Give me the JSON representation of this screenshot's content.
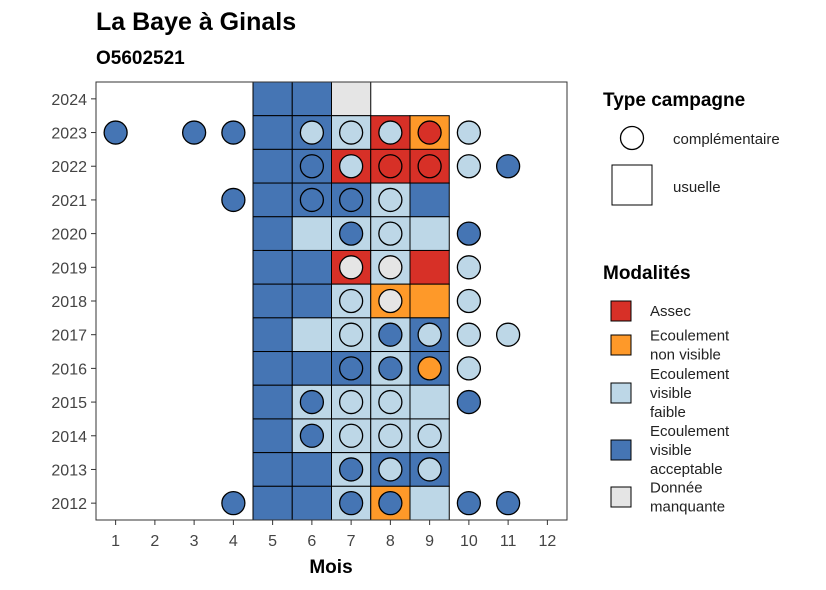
{
  "chart_data": {
    "type": "heatmap",
    "title": "La Baye à Ginals",
    "subtitle": "O5602521",
    "xlabel": "Mois",
    "ylabel": "",
    "x_ticks": [
      "1",
      "2",
      "3",
      "4",
      "5",
      "6",
      "7",
      "8",
      "9",
      "10",
      "11",
      "12"
    ],
    "y_ticks": [
      "2012",
      "2013",
      "2014",
      "2015",
      "2016",
      "2017",
      "2018",
      "2019",
      "2020",
      "2021",
      "2022",
      "2023",
      "2024"
    ],
    "xlim": [
      0.5,
      12.5
    ],
    "ylim": [
      2011.5,
      2024.5
    ],
    "grid": false,
    "legend_position": "right",
    "colors": {
      "Assec": "#d73027",
      "Ecoulement non visible": "#fe9929",
      "Ecoulement visible faible": "#bdd7e7",
      "Ecoulement visible acceptable": "#4575b4",
      "Donnée manquante": "#e5e5e5"
    },
    "legend_campagne": {
      "title": "Type campagne",
      "items": [
        {
          "shape": "circle",
          "label": "complémentaire"
        },
        {
          "shape": "square",
          "label": "usuelle"
        }
      ]
    },
    "legend_modalites": {
      "title": "Modalités",
      "items": [
        {
          "key": "Assec",
          "lines": [
            "Assec"
          ]
        },
        {
          "key": "Ecoulement non visible",
          "lines": [
            "Ecoulement",
            "non visible"
          ]
        },
        {
          "key": "Ecoulement visible faible",
          "lines": [
            "Ecoulement",
            "visible",
            "faible"
          ]
        },
        {
          "key": "Ecoulement visible acceptable",
          "lines": [
            "Ecoulement",
            "visible",
            "acceptable"
          ]
        },
        {
          "key": "Donnée manquante",
          "lines": [
            "Donnée",
            "manquante"
          ]
        }
      ]
    },
    "usuelle": [
      {
        "year": 2024,
        "month": 5,
        "value": "Ecoulement visible acceptable"
      },
      {
        "year": 2024,
        "month": 6,
        "value": "Ecoulement visible acceptable"
      },
      {
        "year": 2024,
        "month": 7,
        "value": "Donnée manquante"
      },
      {
        "year": 2023,
        "month": 5,
        "value": "Ecoulement visible acceptable"
      },
      {
        "year": 2023,
        "month": 6,
        "value": "Ecoulement visible acceptable"
      },
      {
        "year": 2023,
        "month": 7,
        "value": "Ecoulement visible faible"
      },
      {
        "year": 2023,
        "month": 8,
        "value": "Assec"
      },
      {
        "year": 2023,
        "month": 9,
        "value": "Ecoulement non visible"
      },
      {
        "year": 2022,
        "month": 5,
        "value": "Ecoulement visible acceptable"
      },
      {
        "year": 2022,
        "month": 6,
        "value": "Ecoulement visible acceptable"
      },
      {
        "year": 2022,
        "month": 7,
        "value": "Assec"
      },
      {
        "year": 2022,
        "month": 8,
        "value": "Assec"
      },
      {
        "year": 2022,
        "month": 9,
        "value": "Assec"
      },
      {
        "year": 2021,
        "month": 5,
        "value": "Ecoulement visible acceptable"
      },
      {
        "year": 2021,
        "month": 6,
        "value": "Ecoulement visible acceptable"
      },
      {
        "year": 2021,
        "month": 7,
        "value": "Ecoulement visible acceptable"
      },
      {
        "year": 2021,
        "month": 8,
        "value": "Ecoulement visible faible"
      },
      {
        "year": 2021,
        "month": 9,
        "value": "Ecoulement visible acceptable"
      },
      {
        "year": 2020,
        "month": 5,
        "value": "Ecoulement visible acceptable"
      },
      {
        "year": 2020,
        "month": 6,
        "value": "Ecoulement visible faible"
      },
      {
        "year": 2020,
        "month": 7,
        "value": "Ecoulement visible faible"
      },
      {
        "year": 2020,
        "month": 8,
        "value": "Ecoulement visible faible"
      },
      {
        "year": 2020,
        "month": 9,
        "value": "Ecoulement visible faible"
      },
      {
        "year": 2019,
        "month": 5,
        "value": "Ecoulement visible acceptable"
      },
      {
        "year": 2019,
        "month": 6,
        "value": "Ecoulement visible acceptable"
      },
      {
        "year": 2019,
        "month": 7,
        "value": "Assec"
      },
      {
        "year": 2019,
        "month": 8,
        "value": "Ecoulement visible faible"
      },
      {
        "year": 2019,
        "month": 9,
        "value": "Assec"
      },
      {
        "year": 2018,
        "month": 5,
        "value": "Ecoulement visible acceptable"
      },
      {
        "year": 2018,
        "month": 6,
        "value": "Ecoulement visible acceptable"
      },
      {
        "year": 2018,
        "month": 7,
        "value": "Ecoulement visible faible"
      },
      {
        "year": 2018,
        "month": 8,
        "value": "Ecoulement non visible"
      },
      {
        "year": 2018,
        "month": 9,
        "value": "Ecoulement non visible"
      },
      {
        "year": 2017,
        "month": 5,
        "value": "Ecoulement visible acceptable"
      },
      {
        "year": 2017,
        "month": 6,
        "value": "Ecoulement visible faible"
      },
      {
        "year": 2017,
        "month": 7,
        "value": "Ecoulement visible faible"
      },
      {
        "year": 2017,
        "month": 8,
        "value": "Ecoulement visible faible"
      },
      {
        "year": 2017,
        "month": 9,
        "value": "Ecoulement visible acceptable"
      },
      {
        "year": 2016,
        "month": 5,
        "value": "Ecoulement visible acceptable"
      },
      {
        "year": 2016,
        "month": 6,
        "value": "Ecoulement visible acceptable"
      },
      {
        "year": 2016,
        "month": 7,
        "value": "Ecoulement visible acceptable"
      },
      {
        "year": 2016,
        "month": 8,
        "value": "Ecoulement visible faible"
      },
      {
        "year": 2016,
        "month": 9,
        "value": "Ecoulement visible acceptable"
      },
      {
        "year": 2015,
        "month": 5,
        "value": "Ecoulement visible acceptable"
      },
      {
        "year": 2015,
        "month": 6,
        "value": "Ecoulement visible faible"
      },
      {
        "year": 2015,
        "month": 7,
        "value": "Ecoulement visible faible"
      },
      {
        "year": 2015,
        "month": 8,
        "value": "Ecoulement visible faible"
      },
      {
        "year": 2015,
        "month": 9,
        "value": "Ecoulement visible faible"
      },
      {
        "year": 2014,
        "month": 5,
        "value": "Ecoulement visible acceptable"
      },
      {
        "year": 2014,
        "month": 6,
        "value": "Ecoulement visible faible"
      },
      {
        "year": 2014,
        "month": 7,
        "value": "Ecoulement visible faible"
      },
      {
        "year": 2014,
        "month": 8,
        "value": "Ecoulement visible faible"
      },
      {
        "year": 2014,
        "month": 9,
        "value": "Ecoulement visible faible"
      },
      {
        "year": 2013,
        "month": 5,
        "value": "Ecoulement visible acceptable"
      },
      {
        "year": 2013,
        "month": 6,
        "value": "Ecoulement visible acceptable"
      },
      {
        "year": 2013,
        "month": 7,
        "value": "Ecoulement visible faible"
      },
      {
        "year": 2013,
        "month": 8,
        "value": "Ecoulement visible acceptable"
      },
      {
        "year": 2013,
        "month": 9,
        "value": "Ecoulement visible acceptable"
      },
      {
        "year": 2012,
        "month": 5,
        "value": "Ecoulement visible acceptable"
      },
      {
        "year": 2012,
        "month": 6,
        "value": "Ecoulement visible acceptable"
      },
      {
        "year": 2012,
        "month": 7,
        "value": "Ecoulement visible faible"
      },
      {
        "year": 2012,
        "month": 8,
        "value": "Ecoulement non visible"
      },
      {
        "year": 2012,
        "month": 9,
        "value": "Ecoulement visible faible"
      }
    ],
    "complementaire": [
      {
        "year": 2023,
        "month": 1,
        "value": "Ecoulement visible acceptable"
      },
      {
        "year": 2023,
        "month": 3,
        "value": "Ecoulement visible acceptable"
      },
      {
        "year": 2023,
        "month": 4,
        "value": "Ecoulement visible acceptable"
      },
      {
        "year": 2023,
        "month": 6,
        "value": "Ecoulement visible faible"
      },
      {
        "year": 2023,
        "month": 7,
        "value": "Ecoulement visible faible"
      },
      {
        "year": 2023,
        "month": 8,
        "value": "Ecoulement visible faible"
      },
      {
        "year": 2023,
        "month": 9,
        "value": "Assec"
      },
      {
        "year": 2023,
        "month": 10,
        "value": "Ecoulement visible faible"
      },
      {
        "year": 2022,
        "month": 6,
        "value": "Ecoulement visible acceptable"
      },
      {
        "year": 2022,
        "month": 7,
        "value": "Ecoulement visible faible"
      },
      {
        "year": 2022,
        "month": 8,
        "value": "Assec"
      },
      {
        "year": 2022,
        "month": 9,
        "value": "Assec"
      },
      {
        "year": 2022,
        "month": 10,
        "value": "Ecoulement visible faible"
      },
      {
        "year": 2022,
        "month": 11,
        "value": "Ecoulement visible acceptable"
      },
      {
        "year": 2021,
        "month": 4,
        "value": "Ecoulement visible acceptable"
      },
      {
        "year": 2021,
        "month": 6,
        "value": "Ecoulement visible acceptable"
      },
      {
        "year": 2021,
        "month": 7,
        "value": "Ecoulement visible acceptable"
      },
      {
        "year": 2021,
        "month": 8,
        "value": "Ecoulement visible faible"
      },
      {
        "year": 2020,
        "month": 7,
        "value": "Ecoulement visible acceptable"
      },
      {
        "year": 2020,
        "month": 8,
        "value": "Ecoulement visible faible"
      },
      {
        "year": 2020,
        "month": 10,
        "value": "Ecoulement visible acceptable"
      },
      {
        "year": 2019,
        "month": 7,
        "value": "Donnée manquante"
      },
      {
        "year": 2019,
        "month": 8,
        "value": "Donnée manquante"
      },
      {
        "year": 2019,
        "month": 10,
        "value": "Ecoulement visible faible"
      },
      {
        "year": 2018,
        "month": 7,
        "value": "Ecoulement visible faible"
      },
      {
        "year": 2018,
        "month": 8,
        "value": "Donnée manquante"
      },
      {
        "year": 2018,
        "month": 10,
        "value": "Ecoulement visible faible"
      },
      {
        "year": 2017,
        "month": 7,
        "value": "Ecoulement visible faible"
      },
      {
        "year": 2017,
        "month": 8,
        "value": "Ecoulement visible acceptable"
      },
      {
        "year": 2017,
        "month": 9,
        "value": "Ecoulement visible faible"
      },
      {
        "year": 2017,
        "month": 10,
        "value": "Ecoulement visible faible"
      },
      {
        "year": 2017,
        "month": 11,
        "value": "Ecoulement visible faible"
      },
      {
        "year": 2016,
        "month": 7,
        "value": "Ecoulement visible acceptable"
      },
      {
        "year": 2016,
        "month": 8,
        "value": "Ecoulement visible acceptable"
      },
      {
        "year": 2016,
        "month": 9,
        "value": "Ecoulement non visible"
      },
      {
        "year": 2016,
        "month": 10,
        "value": "Ecoulement visible faible"
      },
      {
        "year": 2015,
        "month": 6,
        "value": "Ecoulement visible acceptable"
      },
      {
        "year": 2015,
        "month": 7,
        "value": "Ecoulement visible faible"
      },
      {
        "year": 2015,
        "month": 8,
        "value": "Ecoulement visible faible"
      },
      {
        "year": 2015,
        "month": 10,
        "value": "Ecoulement visible acceptable"
      },
      {
        "year": 2014,
        "month": 6,
        "value": "Ecoulement visible acceptable"
      },
      {
        "year": 2014,
        "month": 7,
        "value": "Ecoulement visible faible"
      },
      {
        "year": 2014,
        "month": 8,
        "value": "Ecoulement visible faible"
      },
      {
        "year": 2014,
        "month": 9,
        "value": "Ecoulement visible faible"
      },
      {
        "year": 2013,
        "month": 7,
        "value": "Ecoulement visible acceptable"
      },
      {
        "year": 2013,
        "month": 8,
        "value": "Ecoulement visible faible"
      },
      {
        "year": 2013,
        "month": 9,
        "value": "Ecoulement visible faible"
      },
      {
        "year": 2012,
        "month": 4,
        "value": "Ecoulement visible acceptable"
      },
      {
        "year": 2012,
        "month": 7,
        "value": "Ecoulement visible acceptable"
      },
      {
        "year": 2012,
        "month": 8,
        "value": "Ecoulement visible acceptable"
      },
      {
        "year": 2012,
        "month": 10,
        "value": "Ecoulement visible acceptable"
      },
      {
        "year": 2012,
        "month": 11,
        "value": "Ecoulement visible acceptable"
      }
    ]
  }
}
